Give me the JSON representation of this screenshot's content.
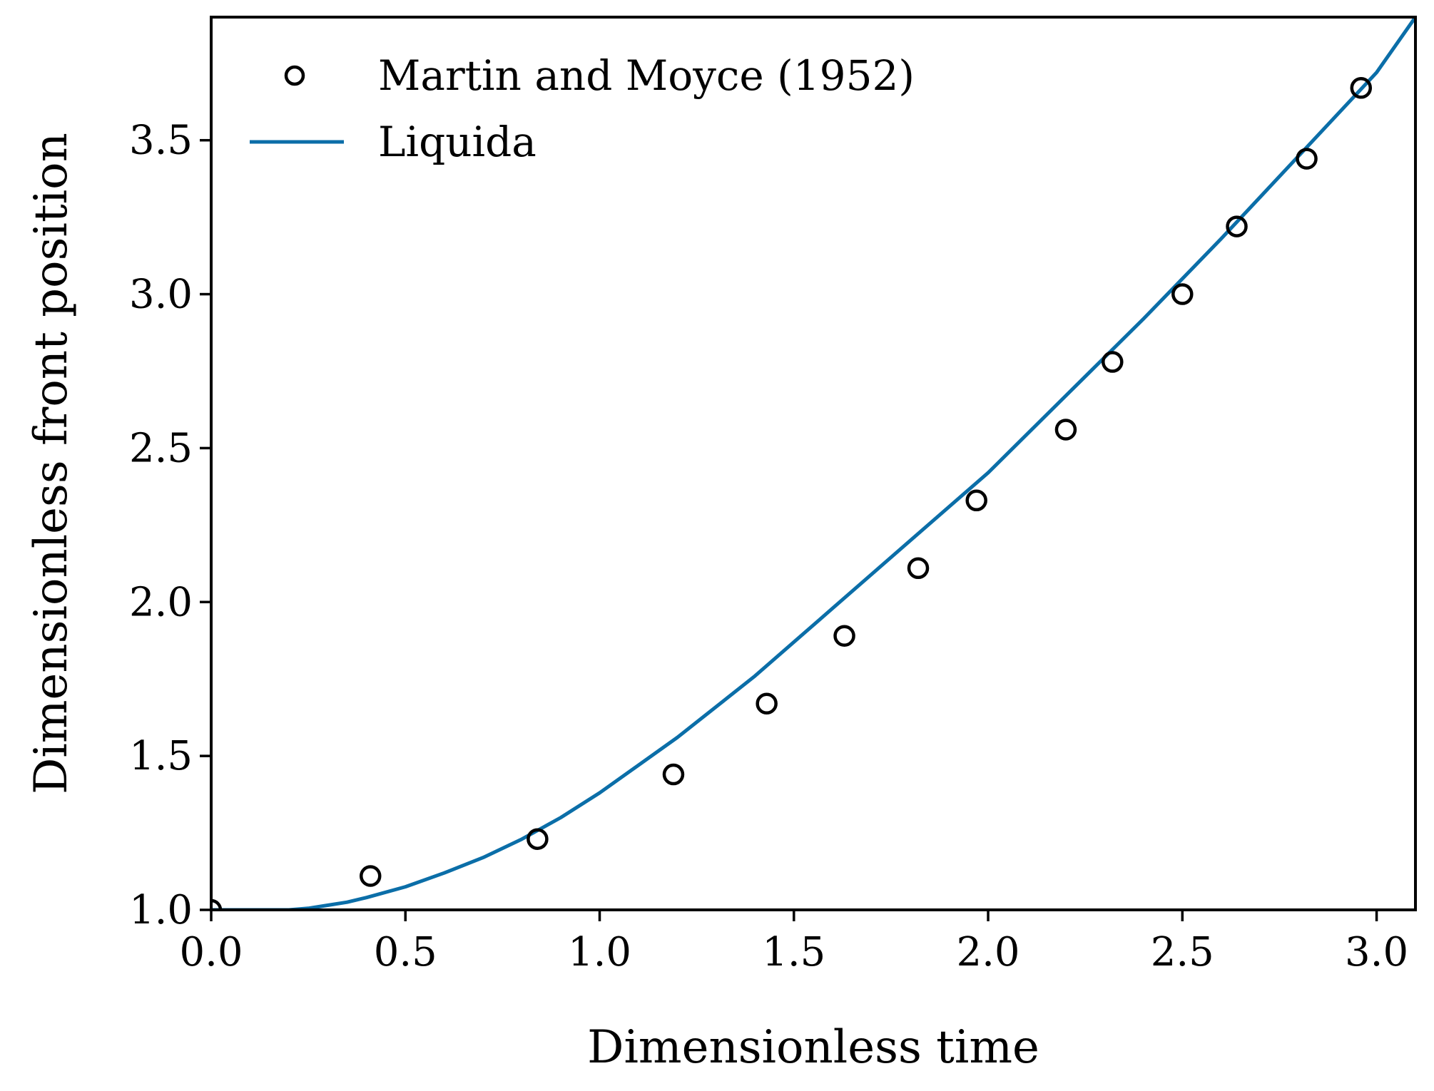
{
  "chart_data": {
    "type": "scatter",
    "xlabel": "Dimensionless time",
    "ylabel": "Dimensionless front position",
    "xlim": [
      0.0,
      3.1
    ],
    "ylim": [
      1.0,
      3.9
    ],
    "xticks": [
      0.0,
      0.5,
      1.0,
      1.5,
      2.0,
      2.5,
      3.0
    ],
    "xtick_labels": [
      "0.0",
      "0.5",
      "1.0",
      "1.5",
      "2.0",
      "2.5",
      "3.0"
    ],
    "yticks": [
      1.0,
      1.5,
      2.0,
      2.5,
      3.0,
      3.5
    ],
    "ytick_labels": [
      "1.0",
      "1.5",
      "2.0",
      "2.5",
      "3.0",
      "3.5"
    ],
    "grid": false,
    "legend_position": "top-left",
    "series": [
      {
        "name": "Martin and Moyce (1952)",
        "kind": "scatter",
        "marker": "open-circle",
        "color": "#000000",
        "x": [
          0.0,
          0.41,
          0.84,
          1.19,
          1.43,
          1.63,
          1.82,
          1.97,
          2.2,
          2.32,
          2.5,
          2.64,
          2.82,
          2.96
        ],
        "y": [
          1.0,
          1.11,
          1.23,
          1.44,
          1.67,
          1.89,
          2.11,
          2.33,
          2.56,
          2.78,
          3.0,
          3.22,
          3.44,
          3.67
        ]
      },
      {
        "name": "Liquida",
        "kind": "line",
        "color": "#0b6ea8",
        "x": [
          0.0,
          0.15,
          0.2,
          0.25,
          0.3,
          0.35,
          0.4,
          0.5,
          0.6,
          0.7,
          0.8,
          0.9,
          1.0,
          1.2,
          1.4,
          1.6,
          1.8,
          2.0,
          2.2,
          2.4,
          2.6,
          2.8,
          3.0,
          3.1
        ],
        "y": [
          1.0,
          1.0,
          1.0,
          1.005,
          1.015,
          1.025,
          1.04,
          1.075,
          1.12,
          1.17,
          1.23,
          1.3,
          1.38,
          1.56,
          1.76,
          1.98,
          2.2,
          2.42,
          2.67,
          2.92,
          3.18,
          3.45,
          3.72,
          3.9
        ]
      }
    ]
  }
}
